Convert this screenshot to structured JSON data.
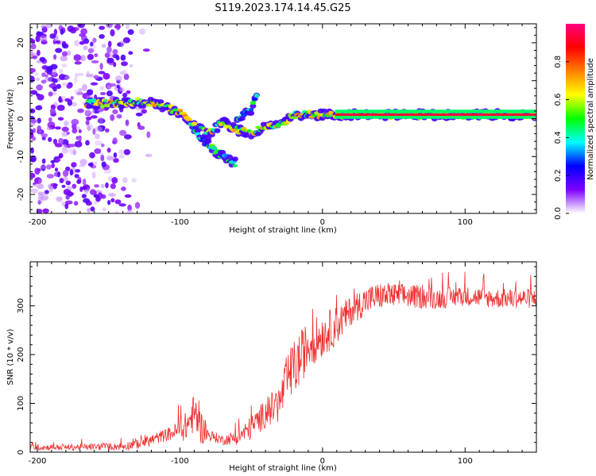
{
  "figure_title": "S119.2023.174.14.45.G25",
  "chart_data": [
    {
      "type": "heatmap",
      "title": "",
      "xlabel": "Height of straight line (km)",
      "ylabel": "Frequency (Hz)",
      "xlim": [
        -205,
        150
      ],
      "ylim": [
        -25,
        25
      ],
      "xticks": [
        -200,
        -100,
        0,
        100
      ],
      "yticks": [
        -20,
        -10,
        0,
        10,
        20
      ],
      "colorbar": {
        "label": "Normalized spectral amplitude",
        "range": [
          0,
          1
        ],
        "ticks": [
          0.0,
          0.2,
          0.4,
          0.6,
          0.8
        ],
        "colormap": [
          "#ffffff",
          "#7f00ff",
          "#0000ff",
          "#00ffff",
          "#00ff00",
          "#ffff00",
          "#ff8000",
          "#ff0000",
          "#ff0080"
        ]
      },
      "features": [
        {
          "name": "scattered-noise",
          "x_range": [
            -205,
            -120
          ],
          "freq_range": [
            -25,
            25
          ],
          "amplitude": 0.1
        },
        {
          "name": "main-band",
          "points": [
            [
              -165,
              4
            ],
            [
              -140,
              4
            ],
            [
              -125,
              4.5
            ],
            [
              -110,
              3
            ],
            [
              -100,
              1.5
            ],
            [
              -90,
              -2
            ],
            [
              -80,
              -4
            ],
            [
              -70,
              -1
            ],
            [
              -60,
              -3
            ],
            [
              -50,
              -4
            ],
            [
              -40,
              -2
            ],
            [
              -30,
              -2
            ],
            [
              -20,
              1
            ],
            [
              -10,
              1
            ],
            [
              0,
              1
            ],
            [
              20,
              1
            ],
            [
              50,
              1
            ],
            [
              100,
              1
            ],
            [
              150,
              1
            ]
          ],
          "amplitude": 0.7
        },
        {
          "name": "feature-branch-1",
          "points": [
            [
              -90,
              -3
            ],
            [
              -80,
              -7
            ],
            [
              -70,
              -10
            ],
            [
              -60,
              -12
            ]
          ],
          "amplitude": 0.5
        },
        {
          "name": "feature-branch-2",
          "points": [
            [
              -60,
              0
            ],
            [
              -50,
              2
            ],
            [
              -45,
              8
            ]
          ],
          "amplitude": 0.5
        },
        {
          "name": "stable-ridge",
          "points": [
            [
              10,
              1
            ],
            [
              150,
              1
            ]
          ],
          "amplitude": 0.95
        }
      ]
    },
    {
      "type": "line",
      "title": "",
      "xlabel": "Height of straight line (km)",
      "ylabel": "SNR (10 * v/v)",
      "xlim": [
        -205,
        150
      ],
      "ylim": [
        0,
        390
      ],
      "xticks": [
        -200,
        -100,
        0,
        100
      ],
      "yticks": [
        0,
        100,
        200,
        300
      ],
      "series": [
        {
          "color": "#ee3030",
          "profile": [
            [
              -205,
              10,
              6
            ],
            [
              -180,
              10,
              6
            ],
            [
              -140,
              12,
              8
            ],
            [
              -125,
              20,
              12
            ],
            [
              -115,
              30,
              12
            ],
            [
              -105,
              40,
              15
            ],
            [
              -100,
              45,
              25
            ],
            [
              -95,
              55,
              30
            ],
            [
              -90,
              80,
              40
            ],
            [
              -85,
              50,
              35
            ],
            [
              -80,
              35,
              12
            ],
            [
              -70,
              25,
              10
            ],
            [
              -60,
              30,
              15
            ],
            [
              -50,
              50,
              25
            ],
            [
              -40,
              80,
              30
            ],
            [
              -30,
              100,
              40
            ],
            [
              -25,
              150,
              50
            ],
            [
              -20,
              170,
              60
            ],
            [
              -10,
              220,
              50
            ],
            [
              0,
              240,
              45
            ],
            [
              10,
              260,
              40
            ],
            [
              20,
              290,
              30
            ],
            [
              30,
              310,
              30
            ],
            [
              40,
              320,
              28
            ],
            [
              60,
              320,
              25
            ],
            [
              80,
              315,
              22
            ],
            [
              100,
              320,
              20
            ],
            [
              120,
              315,
              20
            ],
            [
              150,
              315,
              20
            ]
          ]
        }
      ]
    }
  ]
}
